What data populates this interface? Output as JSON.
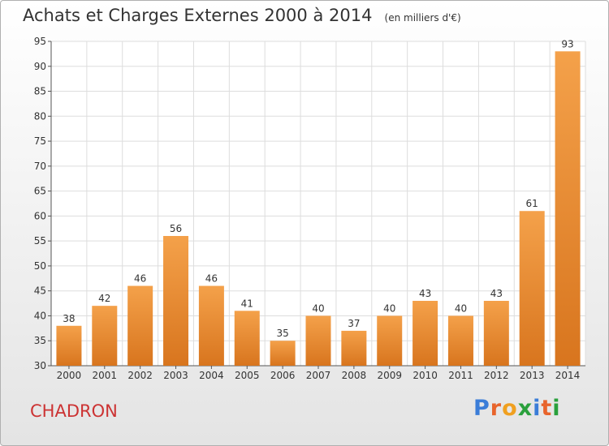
{
  "chart_data": {
    "type": "bar",
    "title": "Achats et Charges Externes 2000 à 2014",
    "subtitle": "(en milliers d'€)",
    "categories": [
      "2000",
      "2001",
      "2002",
      "2003",
      "2004",
      "2005",
      "2006",
      "2007",
      "2008",
      "2009",
      "2010",
      "2011",
      "2012",
      "2013",
      "2014"
    ],
    "values": [
      38,
      42,
      46,
      56,
      46,
      41,
      35,
      40,
      37,
      40,
      43,
      40,
      43,
      61,
      93
    ],
    "ylim": [
      30,
      95
    ],
    "yticks": [
      30,
      35,
      40,
      45,
      50,
      55,
      60,
      65,
      70,
      75,
      80,
      85,
      90,
      95
    ],
    "grid": true,
    "bar_color": "#f4a14a",
    "bar_color_dark": "#d8751e"
  },
  "commune": "CHADRON",
  "logo": {
    "letters": [
      "P",
      "r",
      "o",
      "x",
      "i",
      "t",
      "i"
    ],
    "colors": [
      "#3b7dd8",
      "#e8642c",
      "#f0a020",
      "#2aa03c",
      "#3b7dd8",
      "#e8642c",
      "#2aa03c"
    ]
  }
}
